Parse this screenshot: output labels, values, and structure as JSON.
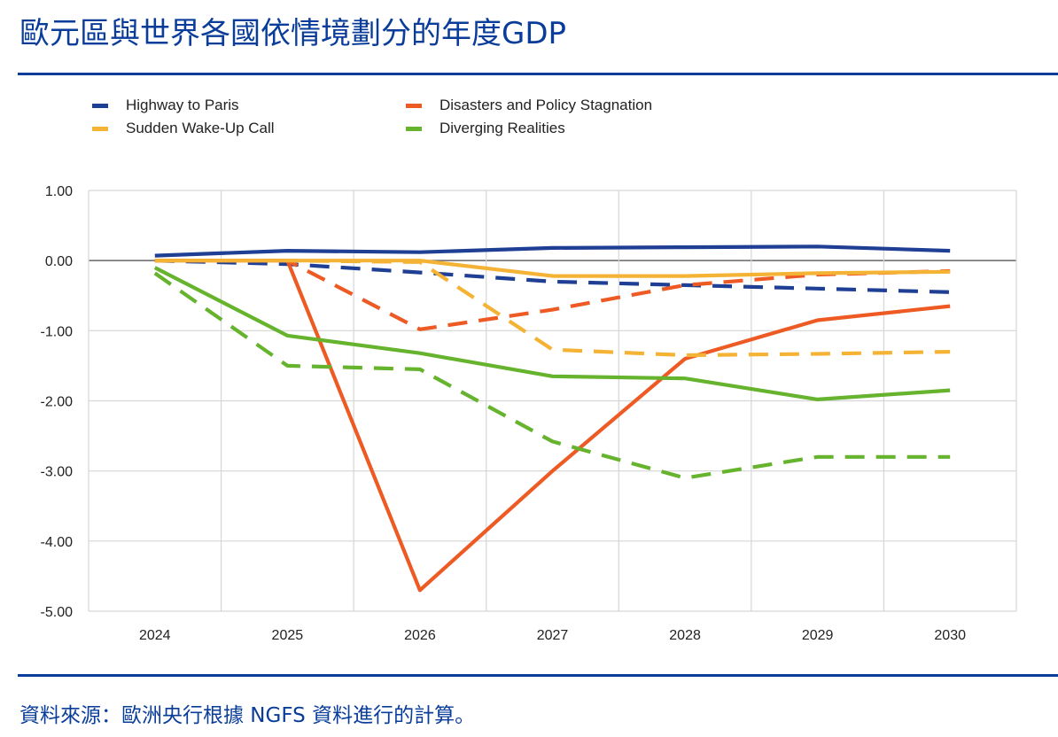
{
  "title": "歐元區與世界各國依情境劃分的年度GDP",
  "source": "資料來源：歐洲央行根據 NGFS 資料進行的計算。",
  "colors": {
    "navy": "#1f3f94",
    "orange": "#ee5a24",
    "yellow": "#f5b335",
    "green": "#66b32e",
    "title": "#0a3d9a"
  },
  "legend": [
    {
      "label": "Highway to Paris",
      "color": "#1f3f94"
    },
    {
      "label": "Disasters and Policy Stagnation",
      "color": "#ee5a24"
    },
    {
      "label": "Sudden Wake-Up Call",
      "color": "#f5b335"
    },
    {
      "label": "Diverging Realities",
      "color": "#66b32e"
    }
  ],
  "chart_data": {
    "type": "line",
    "x": [
      "2024",
      "2025",
      "2026",
      "2027",
      "2028",
      "2029",
      "2030"
    ],
    "ylim": [
      -5,
      1
    ],
    "yticks": [
      "1.00",
      "0.00",
      "-1.00",
      "-2.00",
      "-3.00",
      "-4.00",
      "-5.00"
    ],
    "grid": true,
    "legend_position": "top",
    "series": [
      {
        "name": "Highway to Paris",
        "line": "solid",
        "color": "#1f3f94",
        "values": [
          0.07,
          0.14,
          0.12,
          0.18,
          0.19,
          0.2,
          0.14
        ]
      },
      {
        "name": "Highway to Paris",
        "line": "dashed",
        "color": "#1f3f94",
        "values": [
          0.0,
          -0.05,
          -0.17,
          -0.3,
          -0.35,
          -0.4,
          -0.45
        ]
      },
      {
        "name": "Disasters and Policy Stagnation",
        "line": "solid",
        "color": "#ee5a24",
        "values": [
          0.0,
          0.0,
          -4.7,
          -3.0,
          -1.4,
          -0.85,
          -0.65
        ]
      },
      {
        "name": "Disasters and Policy Stagnation",
        "line": "dashed",
        "color": "#ee5a24",
        "values": [
          0.0,
          0.0,
          -0.98,
          -0.7,
          -0.35,
          -0.2,
          -0.15
        ]
      },
      {
        "name": "Sudden Wake-Up Call",
        "line": "solid",
        "color": "#f5b335",
        "values": [
          0.0,
          0.0,
          0.0,
          -0.22,
          -0.22,
          -0.18,
          -0.16
        ]
      },
      {
        "name": "Sudden Wake-Up Call",
        "line": "dashed",
        "color": "#f5b335",
        "values": [
          0.0,
          0.0,
          -0.02,
          -1.27,
          -1.35,
          -1.33,
          -1.3
        ]
      },
      {
        "name": "Diverging Realities",
        "line": "solid",
        "color": "#66b32e",
        "values": [
          -0.1,
          -1.07,
          -1.32,
          -1.65,
          -1.68,
          -1.98,
          -1.85
        ]
      },
      {
        "name": "Diverging Realities",
        "line": "dashed",
        "color": "#66b32e",
        "values": [
          -0.18,
          -1.5,
          -1.55,
          -2.58,
          -3.1,
          -2.8,
          -2.8
        ]
      }
    ]
  }
}
